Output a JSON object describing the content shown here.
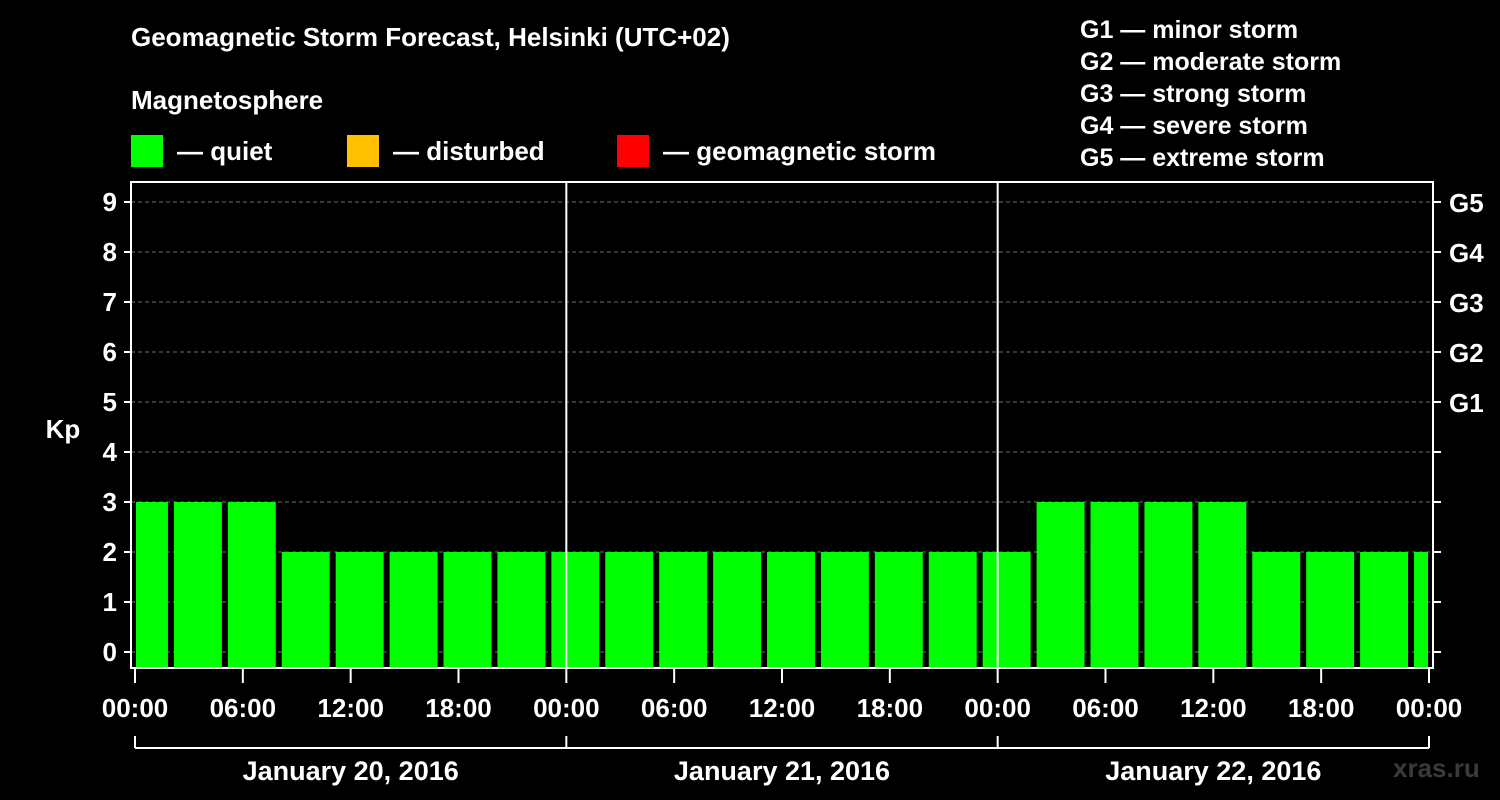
{
  "header": {
    "title": "Geomagnetic Storm Forecast, Helsinki (UTC+02)",
    "subtitle": "Magnetosphere"
  },
  "legend": [
    {
      "label": "— quiet",
      "color": "#00ff00"
    },
    {
      "label": "— disturbed",
      "color": "#ffc000"
    },
    {
      "label": "— geomagnetic storm",
      "color": "#ff0000"
    }
  ],
  "storm_scale": [
    {
      "label": "G1 — minor storm"
    },
    {
      "label": "G2 — moderate storm"
    },
    {
      "label": "G3 — strong storm"
    },
    {
      "label": "G4 — severe storm"
    },
    {
      "label": "G5 — extreme storm"
    }
  ],
  "watermark": "xras.ru",
  "chart_data": {
    "type": "bar",
    "title": "Geomagnetic Storm Forecast, Helsinki (UTC+02)",
    "ylabel": "Kp",
    "ylim": [
      0,
      9
    ],
    "yticks": [
      "0",
      "1",
      "2",
      "3",
      "4",
      "5",
      "6",
      "7",
      "8",
      "9"
    ],
    "right_axis_labels": [
      {
        "kp": 5,
        "label": "G1"
      },
      {
        "kp": 6,
        "label": "G2"
      },
      {
        "kp": 7,
        "label": "G3"
      },
      {
        "kp": 8,
        "label": "G4"
      },
      {
        "kp": 9,
        "label": "G5"
      }
    ],
    "x_tick_labels": [
      "00:00",
      "06:00",
      "12:00",
      "18:00",
      "00:00",
      "06:00",
      "12:00",
      "18:00",
      "00:00",
      "06:00",
      "12:00",
      "18:00",
      "00:00"
    ],
    "days": [
      "January 20, 2016",
      "January 21, 2016",
      "January 22, 2016"
    ],
    "interval_hours": 3,
    "x_start_hour": -1,
    "values": [
      3,
      3,
      3,
      2,
      2,
      2,
      2,
      2,
      2,
      2,
      2,
      2,
      2,
      2,
      2,
      2,
      2,
      3,
      3,
      3,
      3,
      2,
      2,
      2,
      2
    ],
    "bar_color": "#00ff00",
    "grid": true
  }
}
